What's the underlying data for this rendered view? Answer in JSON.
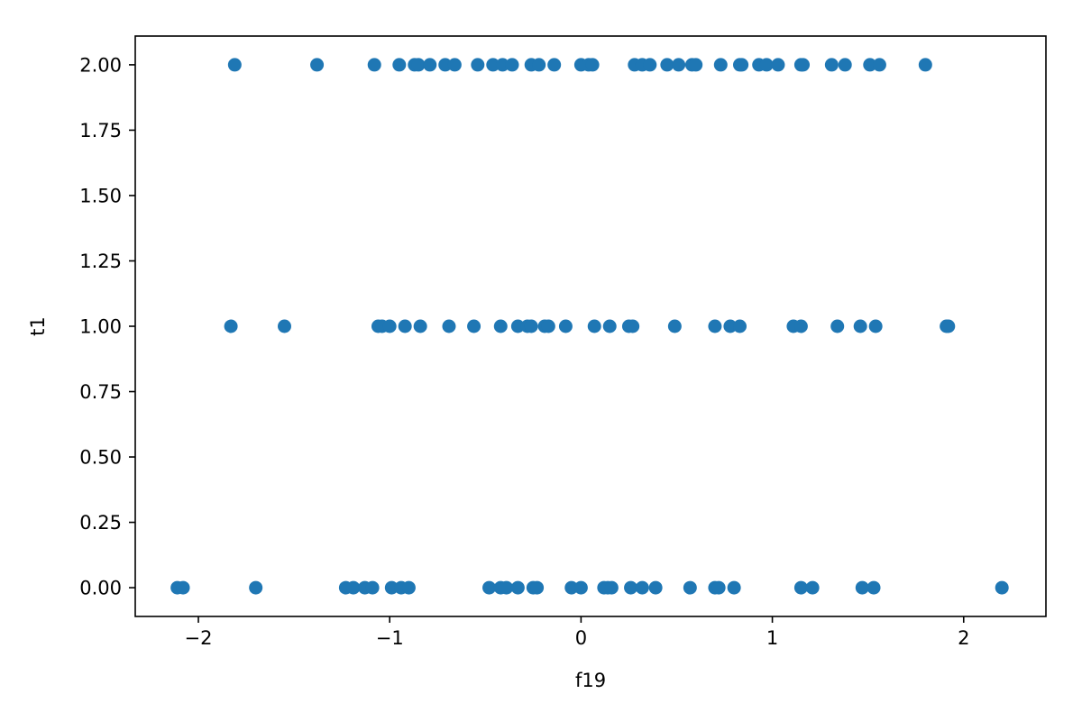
{
  "chart_data": {
    "type": "scatter",
    "title": "",
    "xlabel": "f19",
    "ylabel": "t1",
    "xlim": [
      -2.33,
      2.43
    ],
    "ylim": [
      -0.11,
      2.11
    ],
    "xticks": [
      -2,
      -1,
      0,
      1,
      2
    ],
    "xtick_labels": [
      "−2",
      "−1",
      "0",
      "1",
      "2"
    ],
    "yticks": [
      0,
      0.25,
      0.5,
      0.75,
      1,
      1.25,
      1.5,
      1.75,
      2
    ],
    "ytick_labels": [
      "0.00",
      "0.25",
      "0.50",
      "0.75",
      "1.00",
      "1.25",
      "1.50",
      "1.75",
      "2.00"
    ],
    "grid": false,
    "legend": "none",
    "colors": {
      "marker": "#1f77b4"
    },
    "series": [
      {
        "points": [
          [
            -1.81,
            2
          ],
          [
            -1.38,
            2
          ],
          [
            -1.08,
            2
          ],
          [
            -0.95,
            2
          ],
          [
            -0.87,
            2
          ],
          [
            -0.85,
            2
          ],
          [
            -0.79,
            2
          ],
          [
            -0.71,
            2
          ],
          [
            -0.66,
            2
          ],
          [
            -0.54,
            2
          ],
          [
            -0.46,
            2
          ],
          [
            -0.41,
            2
          ],
          [
            -0.36,
            2
          ],
          [
            -0.26,
            2
          ],
          [
            -0.22,
            2
          ],
          [
            -0.14,
            2
          ],
          [
            0.0,
            2
          ],
          [
            0.04,
            2
          ],
          [
            0.06,
            2
          ],
          [
            0.28,
            2
          ],
          [
            0.32,
            2
          ],
          [
            0.36,
            2
          ],
          [
            0.45,
            2
          ],
          [
            0.51,
            2
          ],
          [
            0.58,
            2
          ],
          [
            0.6,
            2
          ],
          [
            0.73,
            2
          ],
          [
            0.83,
            2
          ],
          [
            0.84,
            2
          ],
          [
            0.93,
            2
          ],
          [
            0.97,
            2
          ],
          [
            1.03,
            2
          ],
          [
            1.15,
            2
          ],
          [
            1.16,
            2
          ],
          [
            1.31,
            2
          ],
          [
            1.38,
            2
          ],
          [
            1.51,
            2
          ],
          [
            1.56,
            2
          ],
          [
            1.8,
            2
          ],
          [
            -1.83,
            1
          ],
          [
            -1.55,
            1
          ],
          [
            -1.06,
            1
          ],
          [
            -1.04,
            1
          ],
          [
            -1.0,
            1
          ],
          [
            -0.92,
            1
          ],
          [
            -0.84,
            1
          ],
          [
            -0.69,
            1
          ],
          [
            -0.56,
            1
          ],
          [
            -0.42,
            1
          ],
          [
            -0.33,
            1
          ],
          [
            -0.28,
            1
          ],
          [
            -0.26,
            1
          ],
          [
            -0.19,
            1
          ],
          [
            -0.17,
            1
          ],
          [
            -0.08,
            1
          ],
          [
            0.07,
            1
          ],
          [
            0.15,
            1
          ],
          [
            0.25,
            1
          ],
          [
            0.27,
            1
          ],
          [
            0.49,
            1
          ],
          [
            0.7,
            1
          ],
          [
            0.78,
            1
          ],
          [
            0.83,
            1
          ],
          [
            1.11,
            1
          ],
          [
            1.15,
            1
          ],
          [
            1.34,
            1
          ],
          [
            1.46,
            1
          ],
          [
            1.54,
            1
          ],
          [
            1.91,
            1
          ],
          [
            1.92,
            1
          ],
          [
            -2.11,
            0
          ],
          [
            -2.08,
            0
          ],
          [
            -1.7,
            0
          ],
          [
            -1.23,
            0
          ],
          [
            -1.19,
            0
          ],
          [
            -1.13,
            0
          ],
          [
            -1.09,
            0
          ],
          [
            -0.99,
            0
          ],
          [
            -0.94,
            0
          ],
          [
            -0.9,
            0
          ],
          [
            -0.48,
            0
          ],
          [
            -0.42,
            0
          ],
          [
            -0.39,
            0
          ],
          [
            -0.33,
            0
          ],
          [
            -0.25,
            0
          ],
          [
            -0.23,
            0
          ],
          [
            -0.05,
            0
          ],
          [
            0.0,
            0
          ],
          [
            0.12,
            0
          ],
          [
            0.14,
            0
          ],
          [
            0.16,
            0
          ],
          [
            0.26,
            0
          ],
          [
            0.32,
            0
          ],
          [
            0.39,
            0
          ],
          [
            0.57,
            0
          ],
          [
            0.7,
            0
          ],
          [
            0.72,
            0
          ],
          [
            0.8,
            0
          ],
          [
            1.15,
            0
          ],
          [
            1.21,
            0
          ],
          [
            1.47,
            0
          ],
          [
            1.53,
            0
          ],
          [
            2.2,
            0
          ]
        ]
      }
    ]
  }
}
